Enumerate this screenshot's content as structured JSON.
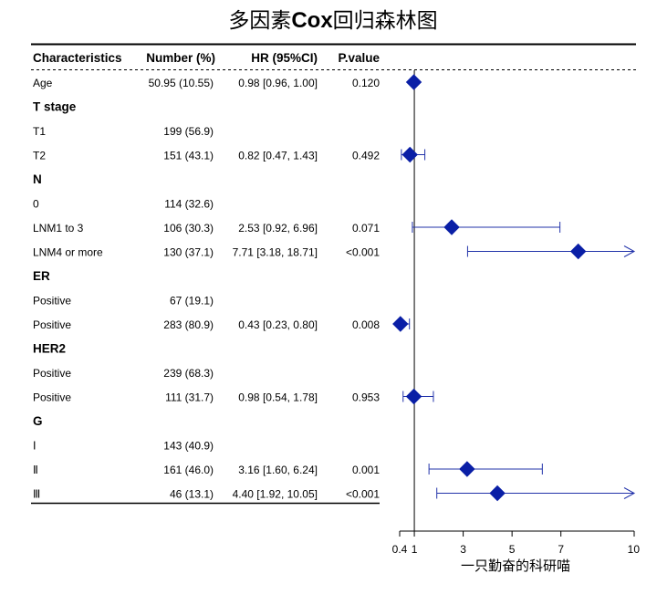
{
  "chart_data": {
    "type": "forest",
    "title_prefix": "多因素",
    "title_bold": "Cox",
    "title_suffix": "回归森林图",
    "columns": [
      "Characteristics",
      "Number (%)",
      "HR (95%CI)",
      "P.value"
    ],
    "rows": [
      {
        "label": "Age",
        "is_group": false,
        "number": "50.95 (10.55)",
        "hr_text": "0.98 [0.96, 1.00]",
        "p": "0.120",
        "hr": 0.98,
        "lo": 0.96,
        "hi": 1.0
      },
      {
        "label": "T stage",
        "is_group": true
      },
      {
        "label": "T1",
        "is_group": false,
        "number": "199 (56.9)"
      },
      {
        "label": "T2",
        "is_group": false,
        "number": "151 (43.1)",
        "hr_text": "0.82 [0.47, 1.43]",
        "p": "0.492",
        "hr": 0.82,
        "lo": 0.47,
        "hi": 1.43
      },
      {
        "label": "N",
        "is_group": true
      },
      {
        "label": "0",
        "is_group": false,
        "number": "114 (32.6)"
      },
      {
        "label": "LNM1 to 3",
        "is_group": false,
        "number": "106 (30.3)",
        "hr_text": "2.53 [0.92, 6.96]",
        "p": "0.071",
        "hr": 2.53,
        "lo": 0.92,
        "hi": 6.96
      },
      {
        "label": "LNM4 or more",
        "is_group": false,
        "number": "130 (37.1)",
        "hr_text": "7.71 [3.18, 18.71]",
        "p": "<0.001",
        "hr": 7.71,
        "lo": 3.18,
        "hi": 18.71
      },
      {
        "label": "ER",
        "is_group": true
      },
      {
        "label": "Positive",
        "is_group": false,
        "number": "67 (19.1)"
      },
      {
        "label": "Positive",
        "is_group": false,
        "number": "283 (80.9)",
        "hr_text": "0.43 [0.23, 0.80]",
        "p": "0.008",
        "hr": 0.43,
        "lo": 0.23,
        "hi": 0.8
      },
      {
        "label": "HER2",
        "is_group": true
      },
      {
        "label": "Positive",
        "is_group": false,
        "number": "239 (68.3)"
      },
      {
        "label": "Positive",
        "is_group": false,
        "number": "111 (31.7)",
        "hr_text": "0.98 [0.54, 1.78]",
        "p": "0.953",
        "hr": 0.98,
        "lo": 0.54,
        "hi": 1.78
      },
      {
        "label": "G",
        "is_group": true
      },
      {
        "label": "Ⅰ",
        "is_group": false,
        "number": "143 (40.9)"
      },
      {
        "label": "Ⅱ",
        "is_group": false,
        "number": "161 (46.0)",
        "hr_text": "3.16 [1.60, 6.24]",
        "p": "0.001",
        "hr": 3.16,
        "lo": 1.6,
        "hi": 6.24
      },
      {
        "label": "Ⅲ",
        "is_group": false,
        "number": "46 (13.1)",
        "hr_text": "4.40 [1.92, 10.05]",
        "p": "<0.001",
        "hr": 4.4,
        "lo": 1.92,
        "hi": 10.05
      }
    ],
    "xaxis": {
      "range": [
        0.4,
        10
      ],
      "ticks": [
        0.4,
        1,
        3,
        5,
        7,
        10
      ],
      "ref_line": 1,
      "label": "一只勤奋的科研喵"
    },
    "colors": {
      "marker": "#0a1fa6",
      "ci": "#2233aa",
      "text": "#000000"
    }
  }
}
